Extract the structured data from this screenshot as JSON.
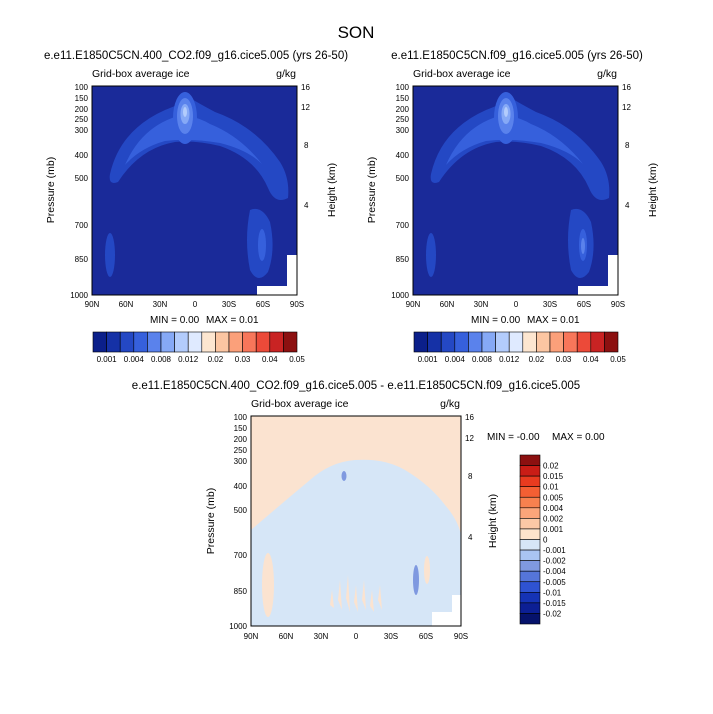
{
  "page_title": "SON",
  "colors": {
    "background": "#ffffff",
    "frame": "#000000",
    "field_base": "#1a2a99",
    "diff_positive": "#fbe3d0",
    "diff_negative": "#d6e6f7",
    "diff_negative_patch": "#7f99e0"
  },
  "chart_data": [
    {
      "type": "heatmap",
      "title": "e.e11.E1850C5CN.400_CO2.f09_g16.cice5.005 (yrs 26-50)",
      "left_label": "Grid-box average ice",
      "right_label": "g/kg",
      "ylabel": "Pressure (mb)",
      "y2label": "Height (km)",
      "x_ticks": [
        "90N",
        "60N",
        "30N",
        "0",
        "30S",
        "60S",
        "90S"
      ],
      "y_ticks": [
        "100",
        "150",
        "200",
        "250",
        "300",
        "400",
        "500",
        "700",
        "850",
        "1000"
      ],
      "y2_ticks": [
        "16",
        "12",
        "8",
        "4"
      ],
      "ylim": [
        1000,
        100
      ],
      "xlim": [
        "90N",
        "90S"
      ],
      "min_label": "MIN =   0.00",
      "max_label": "MAX =   0.01",
      "colorbar_levels": [
        "0.001",
        "0.004",
        "0.008",
        "0.012",
        "0.02",
        "0.03",
        "0.04",
        "0.05"
      ],
      "colorbar_colors": [
        "#0b1f8a",
        "#1531a6",
        "#2448c4",
        "#3660dc",
        "#5a82ec",
        "#86a9f6",
        "#b3ccfc",
        "#dfeaff",
        "#fde6d0",
        "#fcc6a2",
        "#fba07a",
        "#f7765a",
        "#ec4a39",
        "#c92323",
        "#8c1010"
      ]
    },
    {
      "type": "heatmap",
      "title": "e.e11.E1850C5CN.f09_g16.cice5.005 (yrs 26-50)",
      "left_label": "Grid-box average ice",
      "right_label": "g/kg",
      "ylabel": "Pressure (mb)",
      "y2label": "Height (km)",
      "x_ticks": [
        "90N",
        "60N",
        "30N",
        "0",
        "30S",
        "60S",
        "90S"
      ],
      "y_ticks": [
        "100",
        "150",
        "200",
        "250",
        "300",
        "400",
        "500",
        "700",
        "850",
        "1000"
      ],
      "y2_ticks": [
        "16",
        "12",
        "8",
        "4"
      ],
      "ylim": [
        1000,
        100
      ],
      "xlim": [
        "90N",
        "90S"
      ],
      "min_label": "MIN =   0.00",
      "max_label": "MAX =   0.01",
      "colorbar_levels": [
        "0.001",
        "0.004",
        "0.008",
        "0.012",
        "0.02",
        "0.03",
        "0.04",
        "0.05"
      ],
      "colorbar_colors": [
        "#0b1f8a",
        "#1531a6",
        "#2448c4",
        "#3660dc",
        "#5a82ec",
        "#86a9f6",
        "#b3ccfc",
        "#dfeaff",
        "#fde6d0",
        "#fcc6a2",
        "#fba07a",
        "#f7765a",
        "#ec4a39",
        "#c92323",
        "#8c1010"
      ]
    },
    {
      "type": "heatmap",
      "title": "e.e11.E1850C5CN.400_CO2.f09_g16.cice5.005 - e.e11.E1850C5CN.f09_g16.cice5.005",
      "left_label": "Grid-box average ice",
      "right_label": "g/kg",
      "ylabel": "Pressure (mb)",
      "y2label": "Height (km)",
      "x_ticks": [
        "90N",
        "60N",
        "30N",
        "0",
        "30S",
        "60S",
        "90S"
      ],
      "y_ticks": [
        "100",
        "150",
        "200",
        "250",
        "300",
        "400",
        "500",
        "700",
        "850",
        "1000"
      ],
      "y2_ticks": [
        "16",
        "12",
        "8",
        "4"
      ],
      "ylim": [
        1000,
        100
      ],
      "xlim": [
        "90N",
        "90S"
      ],
      "min_label": "MIN =  -0.00",
      "max_label": "MAX =   0.00",
      "colorbar_levels": [
        "0.02",
        "0.015",
        "0.01",
        "0.005",
        "0.004",
        "0.002",
        "0.001",
        "0",
        "-0.001",
        "-0.002",
        "-0.004",
        "-0.005",
        "-0.01",
        "-0.015",
        "-0.02"
      ],
      "colorbar_colors": [
        "#8c1010",
        "#c91d16",
        "#e83b1f",
        "#f45f33",
        "#f8814f",
        "#fba57a",
        "#fcc8a6",
        "#fde3cc",
        "#d6e6f7",
        "#a9c4f2",
        "#7f99e0",
        "#5575d9",
        "#2f53d2",
        "#1533b5",
        "#0c1f94",
        "#06126b"
      ]
    }
  ]
}
